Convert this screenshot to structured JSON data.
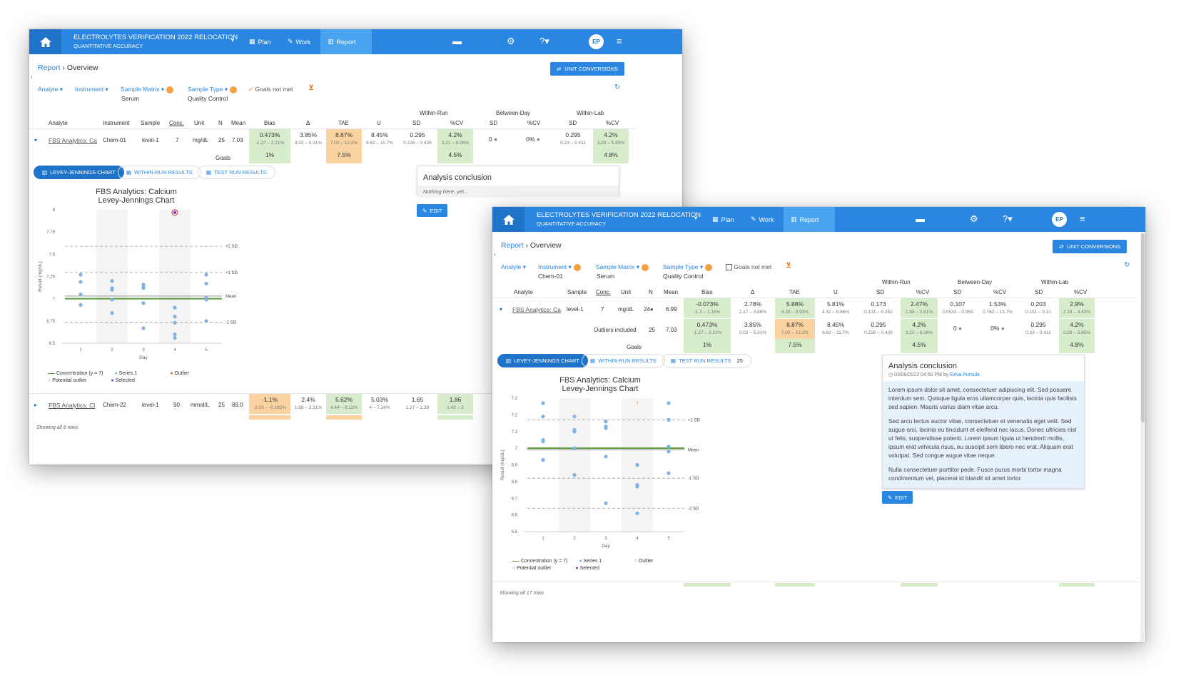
{
  "w1": {
    "nav": {
      "title": "ELECTROLYTES VERIFICATION 2022 RELOCATION",
      "subtitle": "QUANTITATIVE ACCURACY",
      "plan": "Plan",
      "work": "Work",
      "report": "Report",
      "avatar": "EP",
      "caret": "▾"
    },
    "breadcrumb": {
      "root": "Report",
      "sep": "›",
      "current": "Overview"
    },
    "unit_conversions": "UNIT CONVERSIONS",
    "filters": {
      "analyte": "Analyte",
      "instrument": "Instrument",
      "sample_matrix": "Sample Matrix",
      "sample_matrix_value": "Serum",
      "sample_type": "Sample Type",
      "sample_type_value": "Quality Control",
      "goals_not_met": "Goals not met"
    },
    "headers": {
      "within_run": "Within-Run",
      "between_day": "Between-Day",
      "within_lab": "Within-Lab",
      "analyte": "Analyte",
      "instrument": "Instrument",
      "sample": "Sample",
      "conc": "Conc.",
      "unit": "Unit",
      "n": "N",
      "mean": "Mean",
      "bias": "Bias",
      "delta": "Δ",
      "tae": "TAE",
      "u": "U",
      "sd": "SD",
      "cv": "%CV"
    },
    "row1": {
      "analyte": "FBS Analytics: Ca",
      "instrument": "Chem-01",
      "sample": "level-1",
      "conc": "7",
      "unit": "mg/dL",
      "n": "25",
      "mean": "7.03",
      "bias": "0.473%",
      "bias_r": "-1.27 – 2.21%",
      "delta": "3.85%",
      "delta_r": "3.02 – 5.31%",
      "tae": "8.87%",
      "tae_r": "7.02 – 12.2%",
      "u": "8.45%",
      "u_r": "6.62 – 11.7%",
      "wr_sd": "0.295",
      "wr_sd_r": "0.226 – 0.426",
      "wr_cv": "4.2%",
      "wr_cv_r": "3.21 – 6.06%",
      "bd_sd": "0",
      "bd_cv": "0%",
      "wl_sd": "0.295",
      "wl_sd_r": "0.23 – 0.411",
      "wl_cv": "4.2%",
      "wl_cv_r": "3.28 – 5.85%"
    },
    "goals": {
      "label": "Goals",
      "bias": "1%",
      "tae": "7.5%",
      "wr_cv": "4.5%",
      "wl_cv": "4.8%"
    },
    "tabs": {
      "lj": "LEVEY-JENNINGS CHART",
      "within": "WITHIN-RUN RESULTS",
      "test": "TEST RUN RESULTS"
    },
    "conclusion": {
      "title": "Analysis conclusion",
      "placeholder": "Nothing here, yet..."
    },
    "edit": "EDIT",
    "row2": {
      "analyte": "FBS Analytics: Cl",
      "instrument": "Chem-22",
      "sample": "level-1",
      "conc": "90",
      "unit": "mmol/L",
      "n": "25",
      "mean": "89.0",
      "bias": "-1.1%",
      "bias_r": "-2.03 – -0.182%",
      "delta": "2.4%",
      "delta_r": "1.88 – 3.31%",
      "tae": "5.62%",
      "tae_r": "4.44 – 8.11%",
      "u": "5.03%",
      "u_r": "4 – 7.34%",
      "wr_sd": "1.65",
      "wr_sd_r": "1.27 – 2.39",
      "wr_cv": "1.86",
      "wr_cv_r": "1.42 – 2"
    },
    "footer": "Showing all 8 rows",
    "chart": {
      "title": "FBS Analytics: Calcium",
      "subtitle": "Levey-Jennings Chart",
      "xlabel": "Day",
      "ylabel": "Result (mg/dL)",
      "legend": {
        "conc": "Concentration (y = 7)",
        "series": "Series 1",
        "outlier": "Outlier",
        "potential": "Potential outlier",
        "selected": "Selected"
      }
    }
  },
  "w2": {
    "nav": {
      "title": "ELECTROLYTES VERIFICATION 2022 RELOCATION",
      "subtitle": "QUANTITATIVE ACCURACY",
      "plan": "Plan",
      "work": "Work",
      "report": "Report",
      "avatar": "EP",
      "caret": "▾"
    },
    "breadcrumb": {
      "root": "Report",
      "sep": "›",
      "current": "Overview"
    },
    "unit_conversions": "UNIT CONVERSIONS",
    "filters": {
      "analyte": "Analyte",
      "instrument": "Instrument",
      "instrument_value": "Chem-01",
      "sample_matrix": "Sample Matrix",
      "sample_matrix_value": "Serum",
      "sample_type": "Sample Type",
      "sample_type_value": "Quality Control",
      "goals_not_met": "Goals not met"
    },
    "headers": {
      "within_run": "Within-Run",
      "between_day": "Between-Day",
      "within_lab": "Within-Lab",
      "analyte": "Analyte",
      "sample": "Sample",
      "conc": "Conc.",
      "unit": "Unit",
      "n": "N",
      "mean": "Mean",
      "bias": "Bias",
      "delta": "Δ",
      "tae": "TAE",
      "u": "U",
      "sd": "SD",
      "cv": "%CV"
    },
    "row1": {
      "analyte": "FBS Analytics: Ca",
      "sample": "level-1",
      "conc": "7",
      "unit": "mg/dL",
      "n": "24",
      "mean": "6.99",
      "bias": "-0.073%",
      "bias_r": "-1.3 – 1.15%",
      "delta": "2.78%",
      "delta_r": "2.17 – 3.86%",
      "tae": "5.88%",
      "tae_r": "4.39 – 8.93%",
      "u": "5.81%",
      "u_r": "4.32 – 8.86%",
      "wr_sd": "0.173",
      "wr_sd_r": "0.131 – 0.252",
      "wr_cv": "2.47%",
      "wr_cv_r": "1.88 – 3.61%",
      "bd_sd": "0.107",
      "bd_sd_r": "0.0533 – 0.959",
      "bd_cv": "1.53%",
      "bd_cv_r": "0.762 – 13.7%",
      "wl_sd": "0.203",
      "wl_sd_r": "0.151 – 0.31",
      "wl_cv": "2.9%",
      "wl_cv_r": "2.16 – 4.43%"
    },
    "row_outliers": {
      "label": "Outliers included",
      "n": "25",
      "mean": "7.03",
      "bias": "0.473%",
      "bias_r": "-1.27 – 2.21%",
      "delta": "3.85%",
      "delta_r": "3.02 – 5.31%",
      "tae": "8.87%",
      "tae_r": "7.02 – 12.2%",
      "u": "8.45%",
      "u_r": "6.62 – 11.7%",
      "wr_sd": "0.295",
      "wr_sd_r": "0.226 – 0.426",
      "wr_cv": "4.2%",
      "wr_cv_r": "3.21 – 6.06%",
      "bd_sd": "0",
      "bd_cv": "0%",
      "wl_sd": "0.295",
      "wl_sd_r": "0.23 – 0.411",
      "wl_cv": "4.2%",
      "wl_cv_r": "3.28 – 5.85%"
    },
    "goals": {
      "label": "Goals",
      "bias": "1%",
      "tae": "7.5%",
      "wr_cv": "4.5%",
      "wl_cv": "4.8%"
    },
    "tabs": {
      "lj": "LEVEY-JENNINGS CHART",
      "within": "WITHIN-RUN RESULTS",
      "test": "TEST RUN RESULTS",
      "test_count": "25"
    },
    "conclusion": {
      "title": "Analysis conclusion",
      "date": "03/08/2022 04:50 PM by",
      "author": "Eeva Pursula",
      "p1": "Lorem ipsum dolor sit amet, consectetuer adipiscing elit. Sed posuere interdum sem. Quisque ligula eros ullamcorper quis, lacinia quis facilisis sed sapien. Mauris varius diam vitae arcu.",
      "p2": "Sed arcu lectus auctor vitae, consectetuer et venenatis eget velit. Sed augue orci, lacinia eu tincidunt et eleifend nec lacus. Donec ultricies nisl ut felis, suspendisse potenti. Lorem ipsum ligula ut hendrerit mollis, ipsum erat vehicula risus, eu suscipit sem libero nec erat. Aliquam erat volutpat. Sed congue augue vitae neque.",
      "p3": "Nulla consectetuer porttitor pede. Fusce purus morbi tortor magna condimentum vel, placerat id blandit sit amet tortor."
    },
    "edit": "EDIT",
    "footer": "Showing all 17 rows",
    "chart": {
      "title": "FBS Analytics: Calcium",
      "subtitle": "Levey-Jennings Chart",
      "xlabel": "Day",
      "ylabel": "Result (mg/dL)",
      "legend": {
        "conc": "Concentration (y = 7)",
        "series": "Series 1",
        "outlier": "Outlier",
        "potential": "Potential outlier",
        "selected": "Selected"
      }
    }
  },
  "chart_data": [
    {
      "type": "scatter",
      "title": "FBS Analytics: Calcium",
      "subtitle": "Levey-Jennings Chart",
      "xlabel": "Day",
      "ylabel": "Result (mg/dL)",
      "x_ticks": [
        1,
        2,
        3,
        4,
        5
      ],
      "y_ticks": [
        6.5,
        6.75,
        7,
        7.25,
        7.5,
        7.75,
        8
      ],
      "ylim": [
        6.5,
        8
      ],
      "reference_lines": [
        {
          "label": "+2 SD",
          "y": 7.59
        },
        {
          "label": "+1 SD",
          "y": 7.295
        },
        {
          "label": "Mean",
          "y": 7.03
        },
        {
          "label": "-1 SD",
          "y": 6.735
        }
      ],
      "concentration": 7,
      "series": [
        {
          "name": "Series 1",
          "points": [
            [
              1,
              7.27
            ],
            [
              1,
              7.19
            ],
            [
              1,
              7.05
            ],
            [
              1,
              6.93
            ],
            [
              2,
              7.2
            ],
            [
              2,
              7.12
            ],
            [
              2,
              7.1
            ],
            [
              2,
              6.99
            ],
            [
              2,
              6.84
            ],
            [
              3,
              7.16
            ],
            [
              3,
              7.13
            ],
            [
              3,
              7.12
            ],
            [
              3,
              6.95
            ],
            [
              3,
              6.67
            ],
            [
              4,
              6.9
            ],
            [
              4,
              6.8
            ],
            [
              4,
              6.73
            ],
            [
              4,
              6.6
            ],
            [
              4,
              6.56
            ],
            [
              5,
              7.27
            ],
            [
              5,
              7.17
            ],
            [
              5,
              7.01
            ],
            [
              5,
              6.99
            ],
            [
              5,
              6.75
            ]
          ]
        }
      ],
      "potential_outliers": [
        [
          4,
          7.97
        ]
      ]
    },
    {
      "type": "scatter",
      "title": "FBS Analytics: Calcium",
      "subtitle": "Levey-Jennings Chart",
      "xlabel": "Day",
      "ylabel": "Result (mg/dL)",
      "x_ticks": [
        1,
        2,
        3,
        4,
        5
      ],
      "y_ticks": [
        6.5,
        6.6,
        6.7,
        6.8,
        6.9,
        7,
        7.1,
        7.2,
        7.3
      ],
      "ylim": [
        6.5,
        7.3
      ],
      "reference_lines": [
        {
          "label": "+1 SD",
          "y": 7.17
        },
        {
          "label": "Mean",
          "y": 6.99
        },
        {
          "label": "-1 SD",
          "y": 6.82
        },
        {
          "label": "-2 SD",
          "y": 6.64
        }
      ],
      "concentration": 7,
      "series": [
        {
          "name": "Series 1",
          "points": [
            [
              1,
              7.27
            ],
            [
              1,
              7.19
            ],
            [
              1,
              7.05
            ],
            [
              1,
              7.04
            ],
            [
              1,
              6.93
            ],
            [
              2,
              7.19
            ],
            [
              2,
              7.11
            ],
            [
              2,
              7.1
            ],
            [
              2,
              7
            ],
            [
              2,
              6.84
            ],
            [
              3,
              7.16
            ],
            [
              3,
              7.13
            ],
            [
              3,
              7.12
            ],
            [
              3,
              6.95
            ],
            [
              3,
              6.67
            ],
            [
              4,
              6.9
            ],
            [
              4,
              6.78
            ],
            [
              4,
              6.77
            ],
            [
              4,
              6.61
            ],
            [
              5,
              7.27
            ],
            [
              5,
              7.17
            ],
            [
              5,
              7.01
            ],
            [
              5,
              6.98
            ],
            [
              5,
              6.85
            ]
          ]
        }
      ],
      "outliers": [
        [
          4,
          7.27
        ]
      ]
    }
  ]
}
